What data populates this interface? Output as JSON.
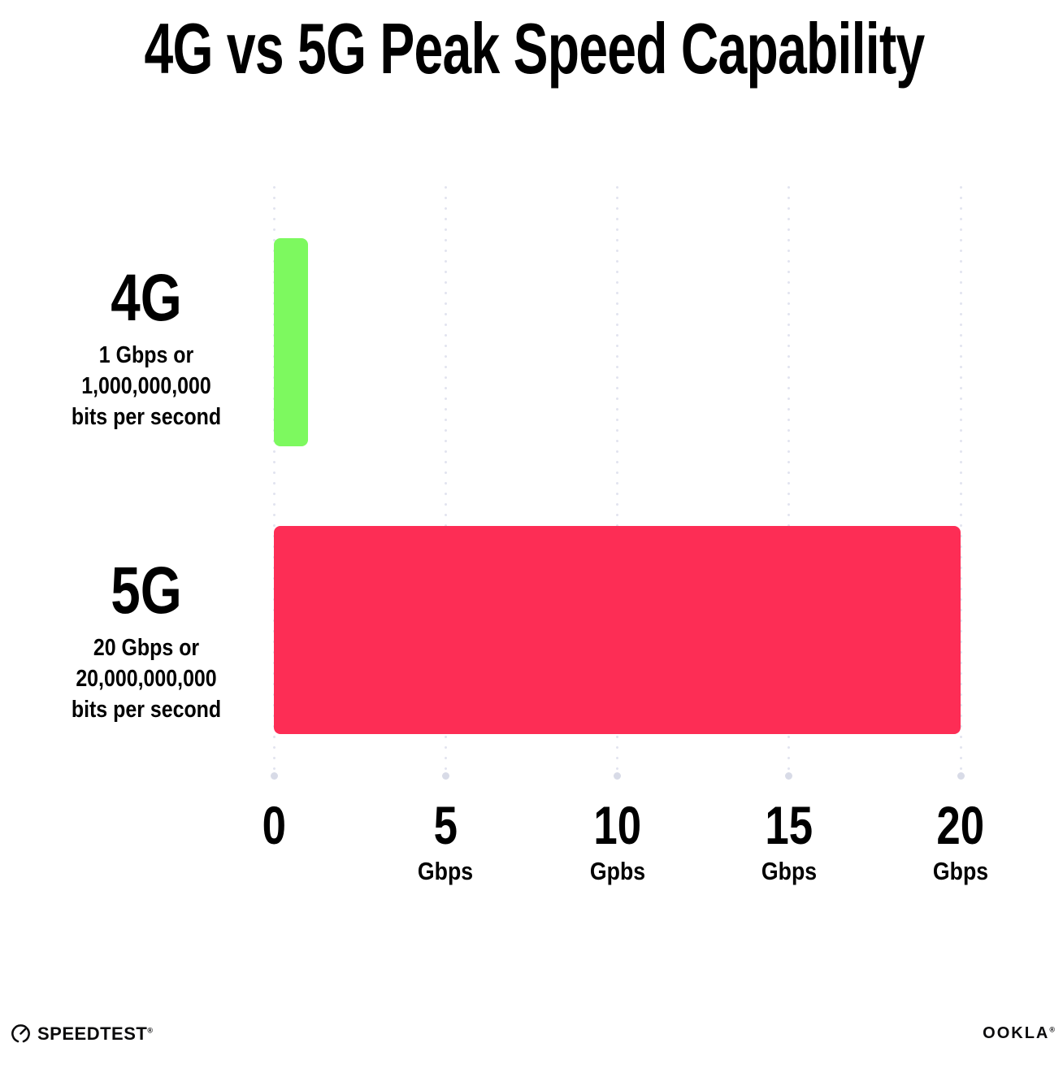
{
  "title": "4G vs 5G Peak Speed Capability",
  "chart_data": {
    "type": "bar",
    "orientation": "horizontal",
    "title": "4G vs 5G Peak Speed Capability",
    "xlabel": "Gbps",
    "xlim": [
      0,
      20
    ],
    "grid": "dotted vertical gridlines every 5 Gbps, large dot at axis base",
    "legend": "none",
    "categories": [
      "4G",
      "5G"
    ],
    "values": [
      1,
      20
    ],
    "bars": [
      {
        "label": "4G",
        "value": 1,
        "color": "#7DF95F",
        "sublabel": [
          "1 Gbps or",
          "1,000,000,000",
          "bits per second"
        ]
      },
      {
        "label": "5G",
        "value": 20,
        "color": "#FD2D55",
        "sublabel": [
          "20 Gbps or",
          "20,000,000,000",
          "bits per second"
        ]
      }
    ],
    "x_ticks": [
      {
        "value": "0",
        "unit": ""
      },
      {
        "value": "5",
        "unit": "Gbps"
      },
      {
        "value": "10",
        "unit": "Gpbs"
      },
      {
        "value": "15",
        "unit": "Gbps"
      },
      {
        "value": "20",
        "unit": "Gbps"
      }
    ]
  },
  "footer": {
    "speedtest_label": "SPEEDTEST",
    "speedtest_trademark": "®",
    "ookla_label": "OOKLA",
    "ookla_trademark": "®"
  },
  "colors": {
    "bar_4g": "#7DF95F",
    "bar_5g": "#FD2D55",
    "grid_dots": "#E2E4EF",
    "axis_dot": "#D8DBE7",
    "text": "#000000",
    "background": "#FFFFFF"
  }
}
